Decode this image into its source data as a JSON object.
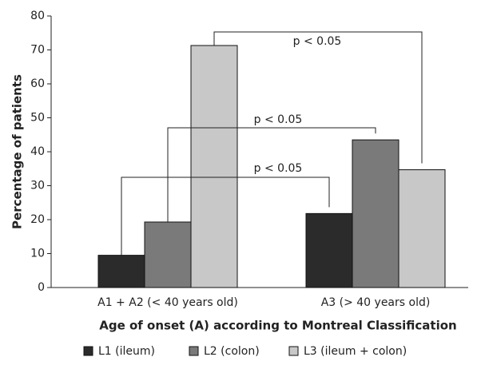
{
  "chart_data": {
    "type": "bar",
    "categories": [
      "A1 + A2 (< 40 years old)",
      "A3 (> 40 years old)"
    ],
    "series": [
      {
        "name": "L1 (ileum)",
        "color": "#2b2b2b",
        "values": [
          9.5,
          21.8
        ]
      },
      {
        "name": "L2 (colon)",
        "color": "#7a7a7a",
        "values": [
          19.3,
          43.5
        ]
      },
      {
        "name": "L3 (ileum + colon)",
        "color": "#c8c8c8",
        "values": [
          71.3,
          34.7
        ]
      }
    ],
    "xlabel": "Age of onset (A) according to Montreal Classification",
    "ylabel": "Percentage of patients",
    "ylim": [
      0,
      80
    ],
    "yticks": [
      0,
      10,
      20,
      30,
      40,
      50,
      60,
      70,
      80
    ],
    "annotations": [
      "p < 0.05",
      "p < 0.05",
      "p < 0.05"
    ],
    "legend": "bottom"
  }
}
